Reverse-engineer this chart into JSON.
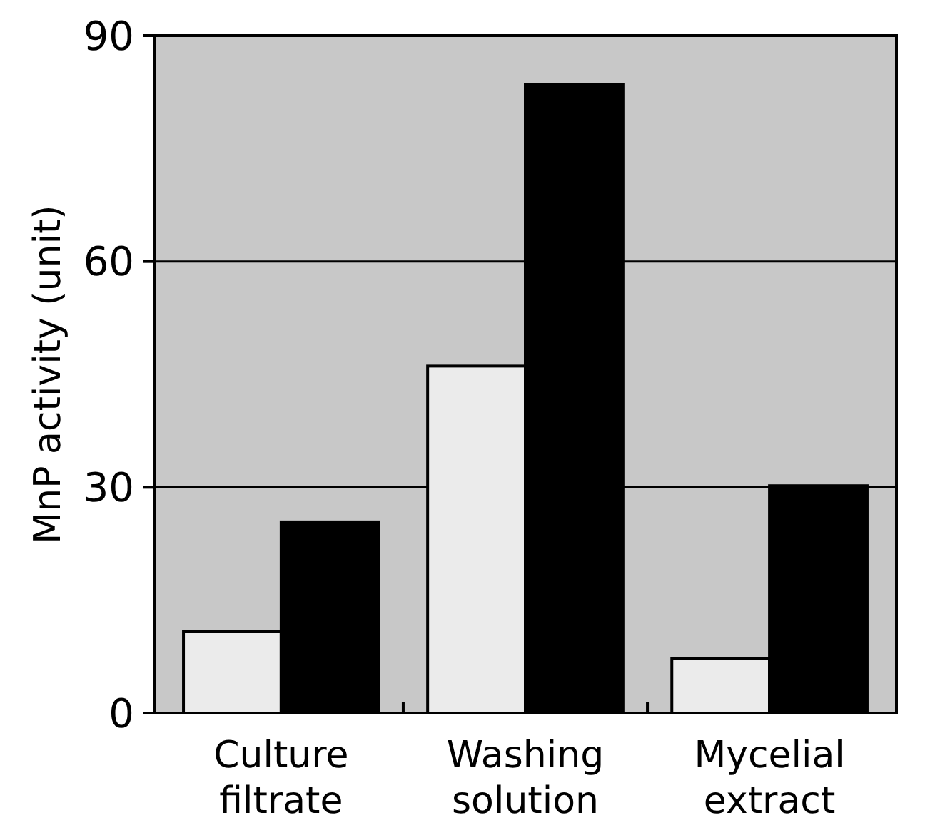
{
  "chart_data": {
    "type": "bar",
    "ylabel": "MnP activity (unit)",
    "categories": [
      "Culture filtrate",
      "Washing solution",
      "Mycelial extract"
    ],
    "series": [
      {
        "color": "#ebebeb",
        "values": [
          10.8,
          46.1,
          7.2
        ]
      },
      {
        "color": "#000000",
        "values": [
          25.4,
          83.5,
          30.2
        ]
      }
    ],
    "ylim": [
      0,
      90
    ],
    "yticks": [
      0,
      30,
      60,
      90
    ],
    "grid": "y"
  }
}
